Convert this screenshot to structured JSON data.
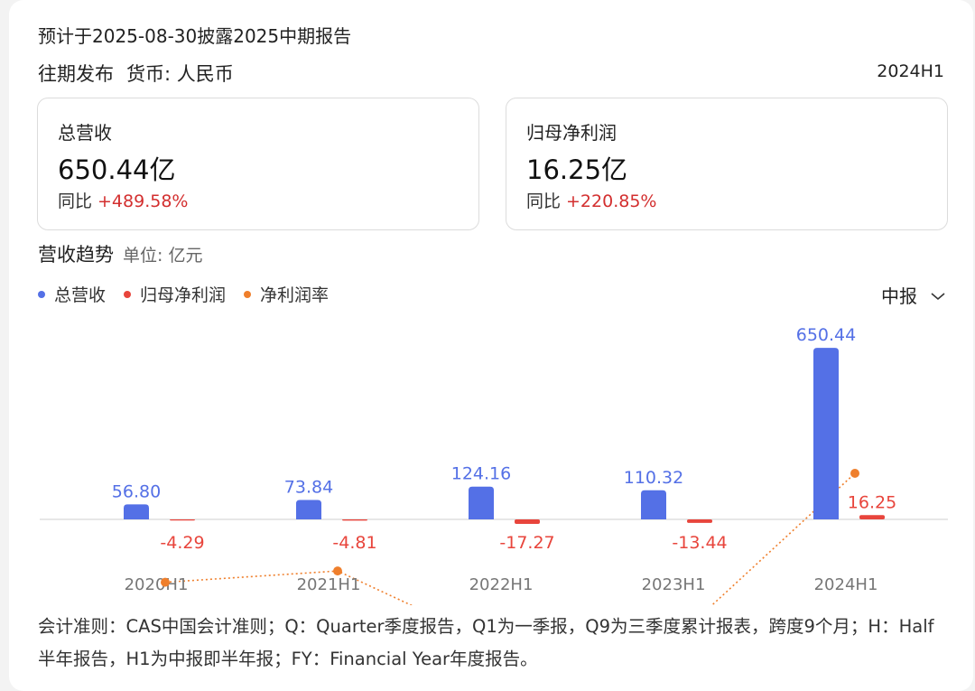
{
  "header": {
    "notice": "预计于2025-08-30披露2025中期报告",
    "history_label": "往期发布",
    "currency_label": "货币: 人民币",
    "period": "2024H1"
  },
  "metrics": [
    {
      "label": "总营收",
      "value": "650.44亿",
      "yoy_label": "同比",
      "yoy": "+489.58%"
    },
    {
      "label": "归母净利润",
      "value": "16.25亿",
      "yoy_label": "同比",
      "yoy": "+220.85%"
    }
  ],
  "trend": {
    "title": "营收趋势",
    "unit": "单位: 亿元",
    "period_selector": "中报"
  },
  "colors": {
    "revenue": "#5470e6",
    "net_profit": "#e8453c",
    "margin": "#ef7f2c",
    "positive": "#d32f2f"
  },
  "chart_data": {
    "type": "bar",
    "categories": [
      "2020H1",
      "2021H1",
      "2022H1",
      "2023H1",
      "2024H1"
    ],
    "series": [
      {
        "name": "总营收",
        "type": "bar",
        "values": [
          56.8,
          73.84,
          124.16,
          110.32,
          650.44
        ]
      },
      {
        "name": "归母净利润",
        "type": "bar",
        "values": [
          -4.29,
          -4.81,
          -17.27,
          -13.44,
          16.25
        ]
      },
      {
        "name": "净利润率",
        "type": "line",
        "style": "dotted",
        "values": [
          -7.55,
          -6.51,
          -13.91,
          -12.18,
          2.5
        ]
      }
    ],
    "legend_position": "top-left",
    "grid": false
  },
  "footnote": "会计准则：CAS中国会计准则；Q：Quarter季度报告，Q1为一季报，Q9为三季度累计报表，跨度9个月；H：Half半年报告，H1为中报即半年报；FY：Financial Year年度报告。"
}
